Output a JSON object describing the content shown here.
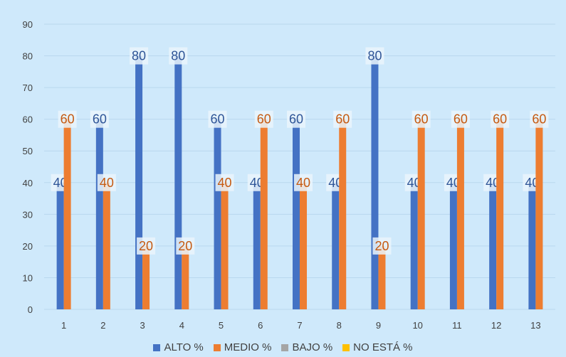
{
  "chart_data": {
    "type": "bar",
    "categories": [
      "1",
      "2",
      "3",
      "4",
      "5",
      "6",
      "7",
      "8",
      "9",
      "10",
      "11",
      "12",
      "13"
    ],
    "series": [
      {
        "name": "ALTO %",
        "color": "#4472c4",
        "label_color": "#2f5597",
        "values": [
          40,
          60,
          80,
          80,
          60,
          40,
          60,
          40,
          80,
          40,
          40,
          40,
          40
        ]
      },
      {
        "name": "MEDIO %",
        "color": "#ed7d31",
        "label_color": "#c55a11",
        "values": [
          60,
          40,
          20,
          20,
          40,
          60,
          40,
          60,
          20,
          60,
          60,
          60,
          60
        ]
      },
      {
        "name": "BAJO %",
        "color": "#a5a5a5",
        "label_color": "#7f7f7f",
        "values": [
          0,
          0,
          0,
          0,
          0,
          0,
          0,
          0,
          0,
          0,
          0,
          0,
          0
        ]
      },
      {
        "name": "NO ESTÁ %",
        "color": "#ffc000",
        "label_color": "#bf9000",
        "values": [
          0,
          0,
          0,
          0,
          0,
          0,
          0,
          0,
          0,
          0,
          0,
          0,
          0
        ]
      }
    ],
    "yticks": [
      "0",
      "10",
      "20",
      "30",
      "40",
      "50",
      "60",
      "70",
      "80",
      "90"
    ],
    "ylim": [
      0,
      90
    ],
    "grid": true,
    "legend_position": "bottom",
    "title": "",
    "xlabel": "",
    "ylabel": ""
  }
}
